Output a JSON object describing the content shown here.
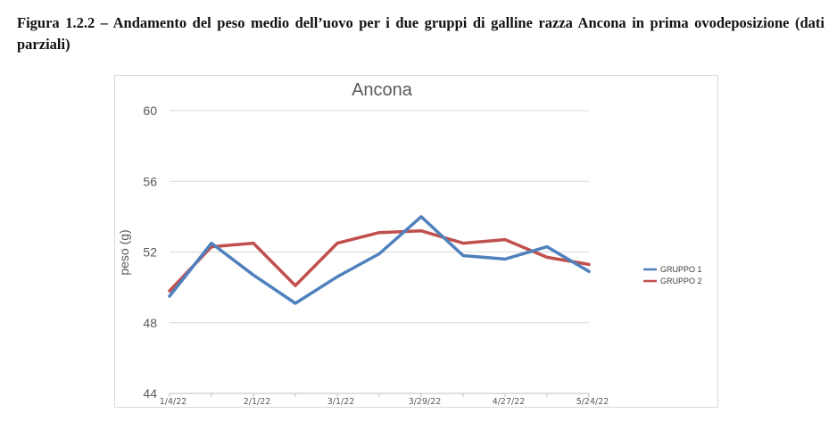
{
  "caption": "Figura 1.2.2 – Andamento del peso medio dell’uovo per i due gruppi di galline razza Ancona in prima ovodeposizione (dati parziali)",
  "chart_data": {
    "type": "line",
    "title": "Ancona",
    "xlabel": "",
    "ylabel": "peso (g)",
    "ylim": [
      44,
      60
    ],
    "yticks": [
      44,
      48,
      52,
      56,
      60
    ],
    "x": [
      "1/4/22",
      "1/18/22",
      "2/1/22",
      "2/15/22",
      "3/1/22",
      "3/15/22",
      "3/29/22",
      "4/12/22",
      "4/27/22",
      "5/10/22",
      "5/24/22"
    ],
    "xtick_labels": [
      "1/4/22",
      "2/1/22",
      "3/1/22",
      "3/29/22",
      "4/27/22",
      "5/24/22"
    ],
    "grid": true,
    "legend_position": "right",
    "series": [
      {
        "name": "GRUPPO 1",
        "color": "#4f81bd",
        "values": [
          49.5,
          52.5,
          50.7,
          49.1,
          50.6,
          51.9,
          54.0,
          51.8,
          51.6,
          52.3,
          50.9
        ]
      },
      {
        "name": "GRUPPO 2",
        "color": "#c0504d",
        "values": [
          49.8,
          52.3,
          52.5,
          50.1,
          52.5,
          53.1,
          53.2,
          52.5,
          52.7,
          51.7,
          51.3
        ]
      }
    ]
  }
}
